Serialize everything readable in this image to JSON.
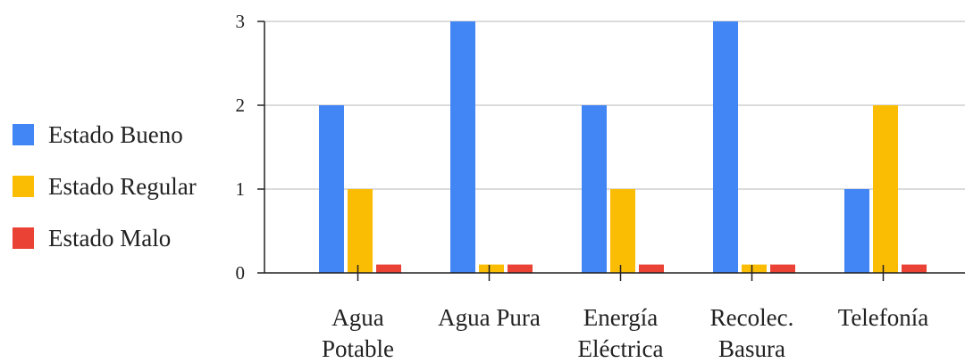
{
  "chart_data": {
    "type": "bar",
    "categories": [
      [
        "Agua",
        "Potable"
      ],
      [
        "Agua Pura"
      ],
      [
        "Energía",
        "Eléctrica"
      ],
      [
        "Recolec.",
        "Basura"
      ],
      [
        "Telefonía"
      ]
    ],
    "series": [
      {
        "name": "Estado Bueno",
        "color": "#4285f4",
        "values": [
          2,
          3,
          2,
          3,
          1
        ]
      },
      {
        "name": "Estado Regular",
        "color": "#fbbc04",
        "values": [
          1,
          0.1,
          1,
          0.1,
          2
        ]
      },
      {
        "name": "Estado Malo",
        "color": "#ea4335",
        "values": [
          0.1,
          0.1,
          0.1,
          0.1,
          0.1
        ]
      }
    ],
    "y_ticks": [
      "0",
      "1",
      "2",
      "3"
    ],
    "ylim": [
      0,
      3
    ],
    "grid": true,
    "legend_position": "left",
    "title": "",
    "xlabel": "",
    "ylabel": ""
  }
}
